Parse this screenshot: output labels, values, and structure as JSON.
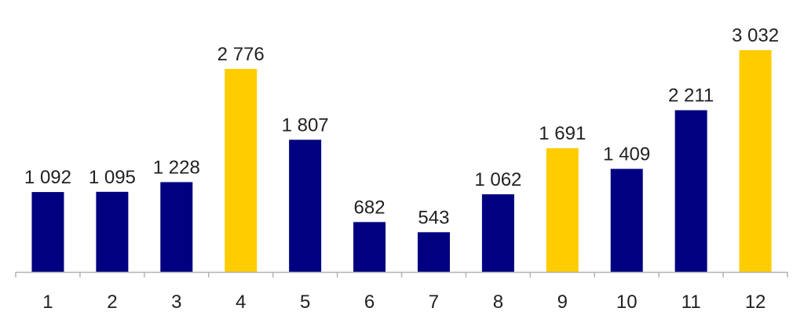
{
  "chart_data": {
    "type": "bar",
    "title": "",
    "xlabel": "",
    "ylabel": "",
    "categories": [
      "1",
      "2",
      "3",
      "4",
      "5",
      "6",
      "7",
      "8",
      "9",
      "10",
      "11",
      "12"
    ],
    "values": [
      1092,
      1095,
      1228,
      2776,
      1807,
      682,
      543,
      1062,
      1691,
      1409,
      2211,
      3032
    ],
    "value_labels": [
      "1 092",
      "1 095",
      "1 228",
      "2 776",
      "1 807",
      "682",
      "543",
      "1 062",
      "1 691",
      "1 409",
      "2 211",
      "3 032"
    ],
    "highlighted": [
      false,
      false,
      false,
      true,
      false,
      false,
      false,
      false,
      true,
      false,
      false,
      true
    ],
    "colors": {
      "default": "#000080",
      "highlight": "#ffcc00",
      "axis": "#b3b3b3"
    },
    "ylim": [
      0,
      3032
    ],
    "grid": false,
    "legend": "none"
  }
}
